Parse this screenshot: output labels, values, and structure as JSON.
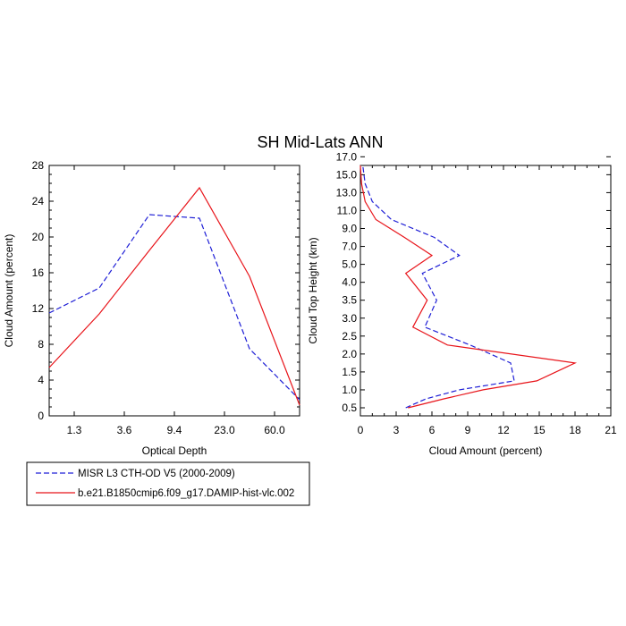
{
  "title": "SH Mid-Lats ANN",
  "colors": {
    "obs": "#1f1fd6",
    "model": "#e8141a",
    "axis": "#000000"
  },
  "legend": {
    "entries": [
      {
        "label": "MISR L3 CTH-OD V5 (2000-2009)",
        "color": "#1f1fd6",
        "dash": "dashed"
      },
      {
        "label": "b.e21.B1850cmip6.f09_g17.DAMIP-hist-vlc.002",
        "color": "#e8141a",
        "dash": "solid"
      }
    ]
  },
  "chart_data": [
    {
      "type": "line",
      "xlabel": "Optical Depth",
      "ylabel": "Cloud Amount (percent)",
      "xtick_labels": [
        "1.3",
        "3.6",
        "9.4",
        "23.0",
        "60.0"
      ],
      "ytick_labels": [
        "0",
        "4",
        "8",
        "12",
        "16",
        "20",
        "24",
        "28"
      ],
      "ylim": [
        0,
        28
      ],
      "xlim": [
        0.5,
        5.5
      ],
      "x": [
        0.5,
        1.5,
        2.5,
        3.5,
        4.5,
        5.5
      ],
      "series": [
        {
          "name": "MISR L3 CTH-OD V5 (2000-2009)",
          "values": [
            11.5,
            14.3,
            22.5,
            22.1,
            7.5,
            1.8
          ]
        },
        {
          "name": "b.e21.B1850cmip6.f09_g17.DAMIP-hist-vlc.002",
          "values": [
            5.4,
            11.4,
            18.5,
            25.5,
            15.6,
            1.2
          ]
        }
      ]
    },
    {
      "type": "line",
      "xlabel": "Cloud Amount (percent)",
      "ylabel": "Cloud Top Height (km)",
      "xtick_labels": [
        "0",
        "3",
        "6",
        "9",
        "12",
        "15",
        "18",
        "21"
      ],
      "ytick_labels": [
        "0.5",
        "1.0",
        "1.5",
        "2.0",
        "2.5",
        "3.0",
        "3.5",
        "4.0",
        "5.0",
        "7.0",
        "9.0",
        "11.0",
        "13.0",
        "15.0",
        "17.0"
      ],
      "xlim": [
        0,
        21
      ],
      "series": [
        {
          "name": "MISR L3 CTH-OD V5 (2000-2009)",
          "x": [
            3.8,
            5.5,
            8.3,
            12.9,
            12.6,
            9.2,
            5.4,
            6.4,
            5.2,
            8.3,
            6.2,
            2.6,
            1.0,
            0.4,
            0.2,
            0.1
          ],
          "y": [
            "0.5",
            "0.75",
            "1.0",
            "1.25",
            "1.75",
            "2.25",
            "2.75",
            "3.5",
            "4.5",
            "6.0",
            "8.0",
            "10.0",
            "12.0",
            "14.0",
            "16.0",
            "18.0"
          ]
        },
        {
          "name": "b.e21.B1850cmip6.f09_g17.DAMIP-hist-vlc.002",
          "x": [
            4.0,
            7.0,
            10.3,
            14.8,
            18.0,
            7.3,
            4.4,
            5.6,
            3.8,
            6.0,
            3.7,
            1.3,
            0.4,
            0.1,
            0.0,
            0.0
          ],
          "y": [
            "0.5",
            "0.75",
            "1.0",
            "1.25",
            "1.75",
            "2.25",
            "2.75",
            "3.5",
            "4.5",
            "6.0",
            "8.0",
            "10.0",
            "12.0",
            "14.0",
            "16.0",
            "18.0"
          ]
        }
      ]
    }
  ]
}
